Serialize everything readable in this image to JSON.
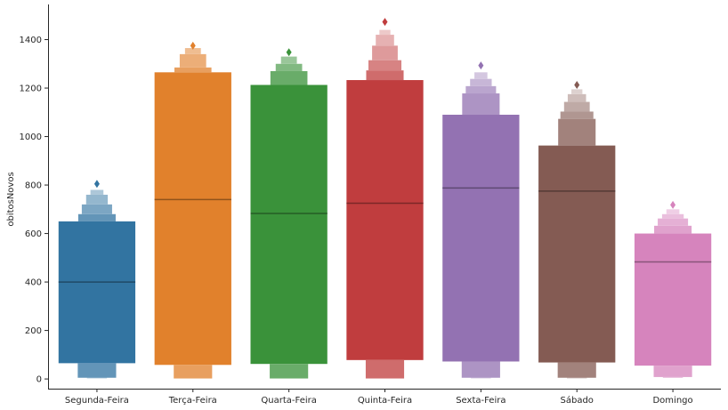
{
  "chart_data": {
    "type": "boxen",
    "title": "",
    "xlabel": "",
    "ylabel": "obitosNovos",
    "ylim": [
      -40,
      1545
    ],
    "yticks": [
      0,
      200,
      400,
      600,
      800,
      1000,
      1200,
      1400
    ],
    "grid": false,
    "categories": [
      "Segunda-Feira",
      "Terça-Feira",
      "Quarta-Feira",
      "Quinta-Feira",
      "Sexta-Feira",
      "Sábado",
      "Domingo"
    ],
    "colors": [
      "#3274a1",
      "#e1812c",
      "#3a923a",
      "#c03d3e",
      "#9372b2",
      "#845b53",
      "#d684bd"
    ],
    "series": [
      {
        "median": 400,
        "levels_upper": [
          650,
          680,
          720,
          760,
          780
        ],
        "levels_lower": [
          65,
          5,
          3
        ],
        "outliers": [
          805
        ]
      },
      {
        "median": 740,
        "levels_upper": [
          1265,
          1285,
          1340,
          1365
        ],
        "levels_lower": [
          58,
          2
        ],
        "outliers": [
          1375
        ]
      },
      {
        "median": 683,
        "levels_upper": [
          1213,
          1270,
          1300,
          1330
        ],
        "levels_lower": [
          62,
          2
        ],
        "outliers": [
          1348
        ]
      },
      {
        "median": 725,
        "levels_upper": [
          1233,
          1273,
          1315,
          1375,
          1420,
          1440
        ],
        "levels_lower": [
          78,
          2
        ],
        "outliers": [
          1473
        ]
      },
      {
        "median": 788,
        "levels_upper": [
          1090,
          1178,
          1208,
          1238,
          1265
        ],
        "levels_lower": [
          72,
          5,
          3
        ],
        "outliers": [
          1293
        ]
      },
      {
        "median": 775,
        "levels_upper": [
          963,
          1073,
          1103,
          1143,
          1175,
          1195
        ],
        "levels_lower": [
          68,
          5,
          3
        ],
        "outliers": [
          1213
        ]
      },
      {
        "median": 483,
        "levels_upper": [
          600,
          632,
          662,
          680,
          700
        ],
        "levels_lower": [
          55,
          8,
          5
        ],
        "outliers": [
          718
        ]
      }
    ]
  }
}
